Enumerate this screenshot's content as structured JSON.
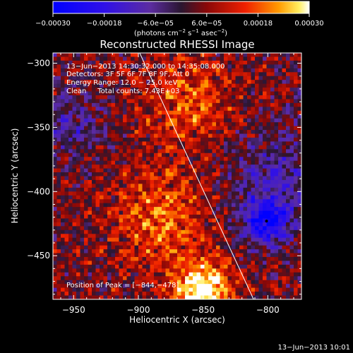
{
  "chart_data": {
    "type": "heatmap",
    "title": "Reconstructed RHESSI Image",
    "xlabel": "Heliocentric X (arcsec)",
    "ylabel": "Heliocentric Y (arcsec)",
    "xlim": [
      -966,
      -774
    ],
    "ylim": [
      -484,
      -292
    ],
    "x_ticks": [
      -950,
      -900,
      -850,
      -800
    ],
    "x_tick_labels": [
      "−950",
      "−900",
      "−850",
      "−800"
    ],
    "y_ticks": [
      -300,
      -350,
      -400,
      -450
    ],
    "y_tick_labels": [
      "−300",
      "−350",
      "−400",
      "−450"
    ],
    "colorbar": {
      "min": -0.0003,
      "max": 0.0003,
      "ticks": [
        -0.0003,
        -0.00018,
        -6e-05,
        6e-05,
        0.00018,
        0.0003
      ],
      "tick_labels": [
        "−0.00030",
        "−0.00018",
        "−6.0e−05",
        "6.0e−05",
        "0.00018",
        "0.00030"
      ],
      "units_label": "(photons cm",
      "units_exp1": "−2",
      "units_mid": " s",
      "units_exp2": "−1",
      "units_end": " asec",
      "units_exp3": "−2",
      "units_close": ")"
    },
    "info_lines": [
      "13−Jun−2013 14:30:32.000 to 14:35:08.000",
      "Detectors: 3F 5F 6F 7F 8F 9F, Att 0",
      "Energy Range: 12.0 − 25.0 keV",
      "Clean     Total counts: 7.43E+03"
    ],
    "peak_label": "Position of Peak = [−844,−478]",
    "peak": {
      "x": -844,
      "y": -478
    },
    "limb_line": {
      "x1": -899,
      "y1": -292,
      "x2": -811,
      "y2": -484
    },
    "marker": {
      "x": -801,
      "y": -423
    },
    "image_size": [
      64,
      64
    ],
    "regions": [
      {
        "desc": "bright source",
        "x": -850,
        "y": -478,
        "value": 0.0003,
        "r": 22
      },
      {
        "desc": "blue minimum",
        "x": -801,
        "y": -423,
        "value": -0.00026,
        "r": 16
      },
      {
        "desc": "negative zone",
        "x": -795,
        "y": -395,
        "value": -0.00012,
        "r": 45
      },
      {
        "desc": "negative zone",
        "x": -955,
        "y": -350,
        "value": -0.0001,
        "r": 30
      },
      {
        "desc": "positive zone",
        "x": -880,
        "y": -420,
        "value": 0.00014,
        "r": 40
      },
      {
        "desc": "positive zone",
        "x": -860,
        "y": -330,
        "value": 0.00012,
        "r": 35
      }
    ]
  },
  "footer": {
    "date": "13−Jun−2013 10:01"
  }
}
